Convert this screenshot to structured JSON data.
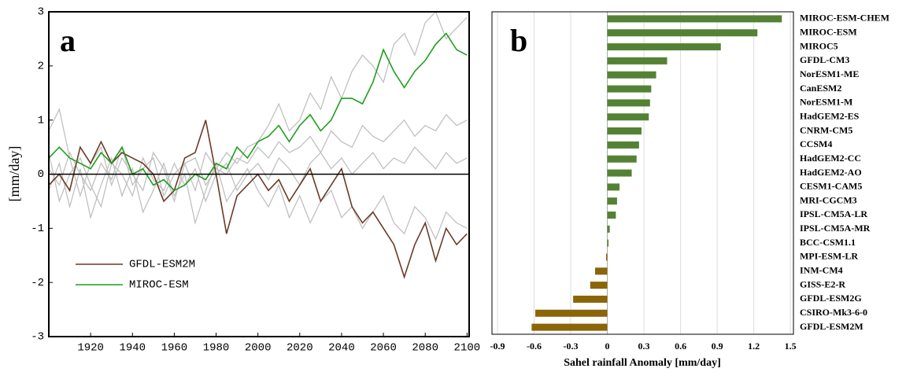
{
  "chart_data": [
    {
      "type": "line",
      "annotation": "a",
      "ylabel": "[mm/day]",
      "xlim": [
        1900,
        2101
      ],
      "ylim": [
        -3,
        3
      ],
      "xticks": [
        1920,
        1940,
        1960,
        1980,
        2000,
        2020,
        2040,
        2060,
        2080,
        2100
      ],
      "yticks": [
        -3,
        -2,
        -1,
        0,
        1,
        2,
        3
      ],
      "legend": "lower left",
      "zero_line": true,
      "x": [
        1900,
        1905,
        1910,
        1915,
        1920,
        1925,
        1930,
        1935,
        1940,
        1945,
        1950,
        1955,
        1960,
        1965,
        1970,
        1975,
        1980,
        1985,
        1990,
        1995,
        2000,
        2005,
        2010,
        2015,
        2020,
        2025,
        2030,
        2035,
        2040,
        2045,
        2050,
        2055,
        2060,
        2065,
        2070,
        2075,
        2080,
        2085,
        2090,
        2095,
        2100
      ],
      "series": [
        {
          "color": "#c0c0c0",
          "values": [
            0.8,
            1.2,
            0.3,
            -0.4,
            0.2,
            0.5,
            -0.2,
            0.3,
            0.0,
            -0.3,
            0.4,
            0.1,
            -0.5,
            0.2,
            0.3,
            -0.2,
            0.1,
            0.4,
            0.2,
            0.5,
            0.6,
            0.9,
            1.3,
            0.8,
            1.0,
            1.5,
            1.2,
            1.8,
            1.4,
            1.9,
            2.2,
            2.0,
            1.7,
            2.4,
            2.6,
            2.2,
            2.8,
            3.0,
            2.5,
            2.7,
            2.9
          ]
        },
        {
          "color": "#c0c0c0",
          "values": [
            -0.3,
            0.2,
            -0.6,
            0.1,
            -0.8,
            -0.2,
            0.3,
            -0.4,
            0.1,
            -0.7,
            -0.3,
            0.2,
            -0.4,
            0.0,
            -0.9,
            -0.3,
            0.2,
            -0.5,
            -0.2,
            0.1,
            -0.3,
            -0.6,
            -0.2,
            -0.8,
            -0.4,
            -0.9,
            -0.5,
            -0.3,
            -0.8,
            -0.6,
            -1.0,
            -0.7,
            -0.4,
            -0.9,
            -1.1,
            -0.6,
            -0.8,
            -1.2,
            -0.7,
            -0.9,
            -1.0
          ]
        },
        {
          "color": "#c0c0c0",
          "values": [
            0.1,
            -0.2,
            0.4,
            0.0,
            -0.3,
            0.2,
            -0.1,
            0.5,
            -0.2,
            0.1,
            0.3,
            -0.4,
            0.0,
            0.2,
            -0.3,
            0.4,
            0.1,
            0.0,
            0.3,
            0.2,
            0.5,
            0.3,
            0.6,
            0.4,
            0.5,
            0.7,
            0.4,
            0.8,
            0.6,
            0.5,
            0.9,
            0.7,
            0.6,
            0.8,
            1.0,
            0.7,
            0.9,
            0.8,
            1.1,
            0.9,
            1.0
          ]
        },
        {
          "color": "#c0c0c0",
          "values": [
            0.4,
            -0.5,
            0.0,
            0.3,
            -0.2,
            -0.6,
            0.2,
            0.0,
            -0.4,
            0.3,
            -0.1,
            -0.3,
            0.2,
            -0.2,
            0.1,
            -0.5,
            0.0,
            0.2,
            -0.3,
            0.0,
            0.2,
            -0.1,
            0.3,
            0.1,
            -0.2,
            0.2,
            0.4,
            0.1,
            0.3,
            0.0,
            0.2,
            0.4,
            0.1,
            0.3,
            0.2,
            0.5,
            0.3,
            0.1,
            0.4,
            0.2,
            0.3
          ]
        },
        {
          "name": "GFDL-ESM2M",
          "color": "#6b3a26",
          "values": [
            -0.2,
            0.0,
            -0.3,
            0.5,
            0.2,
            0.6,
            0.2,
            0.4,
            0.3,
            0.2,
            0.0,
            -0.5,
            -0.3,
            0.3,
            0.4,
            1.0,
            0.0,
            -1.1,
            -0.4,
            -0.2,
            0.0,
            -0.3,
            -0.1,
            -0.5,
            -0.2,
            0.1,
            -0.5,
            -0.2,
            0.1,
            -0.6,
            -0.9,
            -0.7,
            -1.0,
            -1.3,
            -1.9,
            -1.3,
            -0.9,
            -1.6,
            -1.0,
            -1.3,
            -1.1
          ]
        },
        {
          "name": "MIROC-ESM",
          "color": "#1e9e1e",
          "values": [
            0.3,
            0.5,
            0.3,
            0.2,
            0.1,
            0.4,
            0.2,
            0.5,
            0.0,
            0.1,
            -0.2,
            -0.1,
            -0.3,
            -0.2,
            0.0,
            -0.1,
            0.2,
            0.1,
            0.5,
            0.3,
            0.6,
            0.7,
            0.9,
            0.6,
            0.9,
            1.1,
            0.8,
            1.0,
            1.4,
            1.4,
            1.3,
            1.7,
            2.3,
            1.9,
            1.6,
            1.9,
            2.1,
            2.4,
            2.6,
            2.3,
            2.2
          ]
        }
      ]
    },
    {
      "type": "hbar",
      "annotation": "b",
      "xlabel": "Sahel rainfall Anomaly [mm/day]",
      "xlim": [
        -0.945,
        1.525
      ],
      "xticks": [
        -0.9,
        -0.6,
        -0.3,
        0,
        0.3,
        0.6,
        0.9,
        1.2,
        1.5
      ],
      "grid": true,
      "positive_color": "#548235",
      "negative_color": "#8b6508",
      "categories": [
        "MIROC-ESM-CHEM",
        "MIROC-ESM",
        "MIROC5",
        "GFDL-CM3",
        "NorESM1-ME",
        "CanESM2",
        "NorESM1-M",
        "HadGEM2-ES",
        "CNRM-CM5",
        "CCSM4",
        "HadGEM2-CC",
        "HadGEM2-AO",
        "CESM1-CAM5",
        "MRI-CGCM3",
        "IPSL-CM5A-LR",
        "IPSL-CM5A-MR",
        "BCC-CSM1.1",
        "MPI-ESM-LR",
        "INM-CM4",
        "GISS-E2-R",
        "GFDL-ESM2G",
        "CSIRO-Mk3-6-0",
        "GFDL-ESM2M"
      ],
      "values": [
        1.43,
        1.23,
        0.93,
        0.49,
        0.4,
        0.36,
        0.35,
        0.34,
        0.28,
        0.26,
        0.24,
        0.2,
        0.1,
        0.08,
        0.07,
        0.02,
        0.01,
        -0.01,
        -0.1,
        -0.14,
        -0.28,
        -0.59,
        -0.62
      ]
    }
  ]
}
